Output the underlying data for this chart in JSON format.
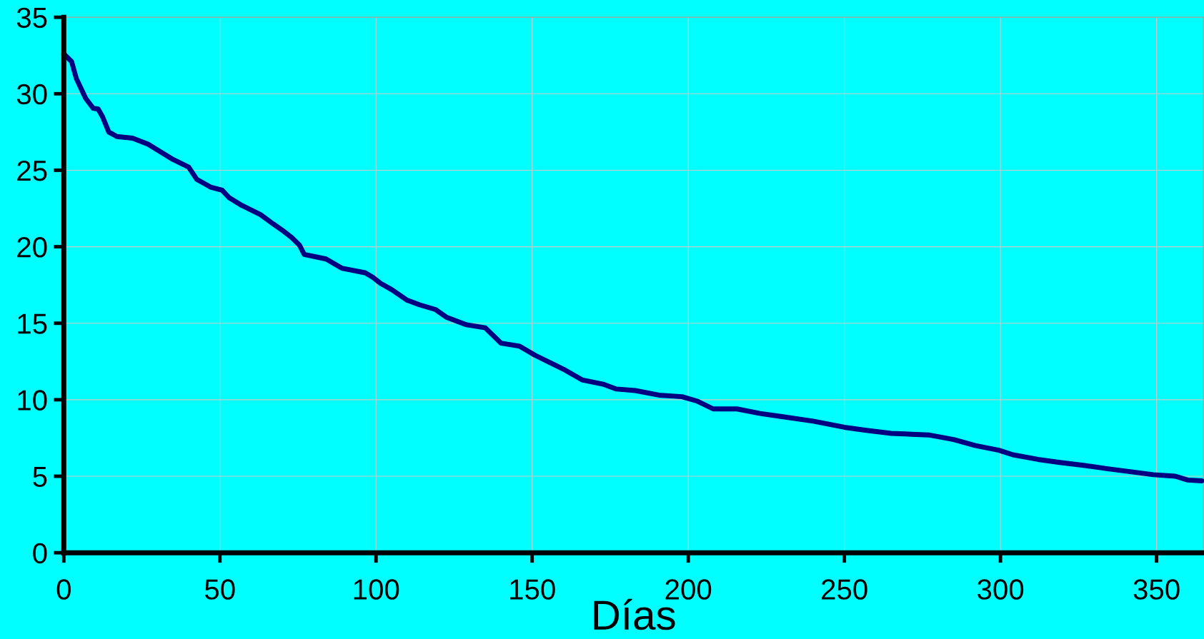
{
  "chart_data": {
    "type": "line",
    "xlabel": "Días",
    "xlim": [
      0,
      365
    ],
    "ylim": [
      0,
      35
    ],
    "xticks": [
      0,
      50,
      100,
      150,
      200,
      250,
      300,
      350
    ],
    "yticks": [
      0,
      5,
      10,
      15,
      20,
      25,
      30,
      35
    ],
    "grid": true,
    "marker": "none",
    "line_style": "solid",
    "series": [
      {
        "color": "#000080",
        "x": [
          0,
          2.5,
          4,
          7,
          9.4,
          11,
          12.4,
          14.4,
          17,
          22,
          27,
          31,
          35,
          40,
          42.6,
          47,
          50.7,
          53,
          57,
          63,
          67,
          70.5,
          73,
          75.5,
          77,
          84,
          89,
          96.5,
          99,
          101.5,
          105,
          110,
          114,
          119,
          122.5,
          129,
          135,
          137,
          140,
          146,
          151,
          155,
          160,
          166,
          173,
          177,
          183,
          190.6,
          198,
          203,
          208,
          215.6,
          223,
          230,
          240,
          250,
          257,
          265,
          277,
          285,
          292,
          299.5,
          304,
          312,
          319,
          327,
          334,
          341.5,
          349,
          356,
          360,
          364.5
        ],
        "values": [
          32.6,
          32.1,
          31.0,
          29.7,
          29.05,
          29.0,
          28.5,
          27.5,
          27.2,
          27.1,
          26.7,
          26.2,
          25.7,
          25.2,
          24.4,
          23.9,
          23.7,
          23.2,
          22.7,
          22.1,
          21.5,
          21.0,
          20.6,
          20.1,
          19.5,
          19.2,
          18.6,
          18.3,
          18.0,
          17.6,
          17.2,
          16.5,
          16.2,
          15.9,
          15.4,
          14.9,
          14.7,
          14.3,
          13.7,
          13.5,
          12.9,
          12.5,
          12.0,
          11.3,
          11.0,
          10.7,
          10.6,
          10.3,
          10.2,
          9.9,
          9.4,
          9.4,
          9.1,
          8.9,
          8.6,
          8.2,
          8.0,
          7.8,
          7.7,
          7.4,
          7.0,
          6.7,
          6.4,
          6.1,
          5.9,
          5.7,
          5.5,
          5.3,
          5.1,
          5.0,
          4.75,
          4.7
        ]
      }
    ]
  }
}
